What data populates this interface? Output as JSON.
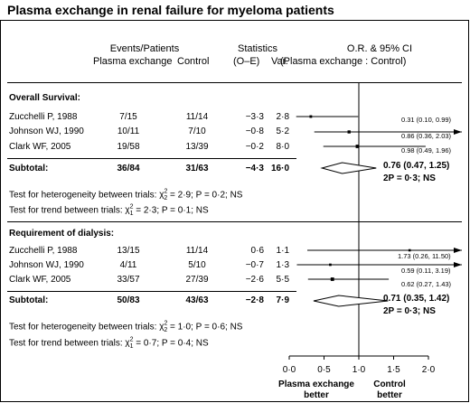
{
  "title": "Plasma exchange in renal failure for myeloma patients",
  "headers": {
    "events_top": "Events/Patients",
    "events_pe": "Plasma exchange",
    "events_ctrl": "Control",
    "stats_top": "Statistics",
    "o_e": "(O–E)",
    "var": "Var.",
    "or_top": "O.R. & 95% CI",
    "or_sub": "(Plasma exchange : Control)"
  },
  "chart_data": {
    "type": "forest",
    "x_axis": {
      "ticks": [
        0.0,
        0.5,
        1.0,
        1.5,
        2.0
      ],
      "tick_labels": [
        "0·0",
        "0·5",
        "1·0",
        "1·5",
        "2·0"
      ],
      "xlim": [
        0.0,
        2.0
      ],
      "left_label": [
        "Plasma exchange",
        "better"
      ],
      "right_label": [
        "Control",
        "better"
      ]
    },
    "sections": [
      {
        "heading": "Overall Survival:",
        "studies": [
          {
            "name": "Zucchelli P, 1988",
            "pe": "7/15",
            "ctrl": "11/14",
            "o_e": "−3·3",
            "var": "2·8",
            "or": 0.31,
            "lo": 0.1,
            "hi": 0.99,
            "ci_text": "0.31 (0.10, 0.99)"
          },
          {
            "name": "Johnson WJ, 1990",
            "pe": "10/11",
            "ctrl": "7/10",
            "o_e": "−0·8",
            "var": "5·2",
            "or": 0.86,
            "lo": 0.36,
            "hi": 2.03,
            "ci_text": "0.86 (0.36, 2.03)"
          },
          {
            "name": "Clark WF, 2005",
            "pe": "19/58",
            "ctrl": "13/39",
            "o_e": "−0·2",
            "var": "8·0",
            "or": 0.98,
            "lo": 0.49,
            "hi": 1.96,
            "ci_text": "0.98 (0.49, 1.96)"
          }
        ],
        "subtotal": {
          "label": "Subtotal:",
          "pe": "36/84",
          "ctrl": "31/63",
          "o_e": "−4·3",
          "var": "16·0",
          "or": 0.76,
          "lo": 0.47,
          "hi": 1.25,
          "ci_text": "0.76 (0.47, 1.25)",
          "p_text": "2P = 0·3; NS"
        },
        "het_prefix": "Test for heterogeneity between trials: ",
        "het_rest": " = 2·9; P = 0·2; NS",
        "trend_prefix": "Test for trend between trials: ",
        "trend_rest": " = 2·3; P = 0·1; NS"
      },
      {
        "heading": "Requirement of dialysis:",
        "studies": [
          {
            "name": "Zucchelli P, 1988",
            "pe": "13/15",
            "ctrl": "11/14",
            "o_e": "0·6",
            "var": "1·1",
            "or": 1.73,
            "lo": 0.26,
            "hi": 11.5,
            "ci_text": "1.73 (0.26, 11.50)"
          },
          {
            "name": "Johnson WJ, 1990",
            "pe": "4/11",
            "ctrl": "5/10",
            "o_e": "−0·7",
            "var": "1·3",
            "or": 0.59,
            "lo": 0.11,
            "hi": 3.19,
            "ci_text": "0.59 (0.11, 3.19)"
          },
          {
            "name": "Clark WF, 2005",
            "pe": "33/57",
            "ctrl": "27/39",
            "o_e": "−2·6",
            "var": "5·5",
            "or": 0.62,
            "lo": 0.27,
            "hi": 1.43,
            "ci_text": "0.62 (0.27, 1.43)"
          }
        ],
        "subtotal": {
          "label": "Subtotal:",
          "pe": "50/83",
          "ctrl": "43/63",
          "o_e": "−2·8",
          "var": "7·9",
          "or": 0.71,
          "lo": 0.35,
          "hi": 1.42,
          "ci_text": "0.71 (0.35, 1.42)",
          "p_text": "2P = 0·3; NS"
        },
        "het_prefix": "Test for heterogeneity between trials: ",
        "het_rest": " = 1·0; P = 0·6; NS",
        "trend_prefix": "Test for trend between trials: ",
        "trend_rest": " = 0·7; P = 0·4; NS"
      }
    ]
  }
}
